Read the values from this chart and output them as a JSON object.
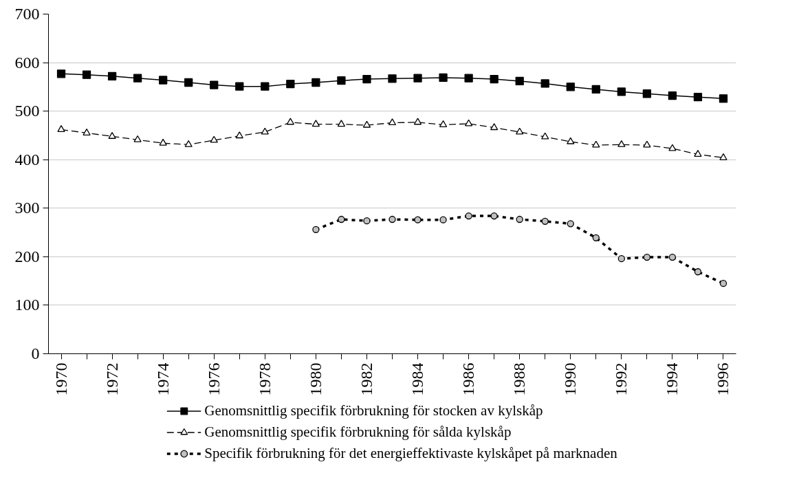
{
  "chart_data": {
    "type": "line",
    "x": [
      1970,
      1971,
      1972,
      1973,
      1974,
      1975,
      1976,
      1977,
      1978,
      1979,
      1980,
      1981,
      1982,
      1983,
      1984,
      1985,
      1986,
      1987,
      1988,
      1989,
      1990,
      1991,
      1992,
      1993,
      1994,
      1995,
      1996
    ],
    "xlim": [
      1969.5,
      1996.5
    ],
    "xticks": [
      1970,
      {
        "value": 1971,
        "label": null
      },
      1972,
      {
        "value": 1973,
        "label": null
      },
      1974,
      {
        "value": 1975,
        "label": null
      },
      1976,
      {
        "value": 1977,
        "label": null
      },
      1978,
      {
        "value": 1979,
        "label": null
      },
      1980,
      {
        "value": 1981,
        "label": null
      },
      1982,
      {
        "value": 1983,
        "label": null
      },
      1984,
      {
        "value": 1985,
        "label": null
      },
      1986,
      {
        "value": 1987,
        "label": null
      },
      1988,
      {
        "value": 1989,
        "label": null
      },
      1990,
      {
        "value": 1991,
        "label": null
      },
      1992,
      {
        "value": 1993,
        "label": null
      },
      1994,
      {
        "value": 1995,
        "label": null
      },
      1996
    ],
    "ylim": [
      0,
      700
    ],
    "yticks": [
      0,
      100,
      200,
      300,
      400,
      500,
      600,
      700
    ],
    "grid": "y",
    "legend": "bottom",
    "series": [
      {
        "name": "Genomsnittlig specifik förbrukning för stocken av kylskåp",
        "color": "#000000",
        "marker": "square",
        "line_style": "solid",
        "values": [
          577,
          575,
          572,
          568,
          564,
          559,
          554,
          551,
          551,
          556,
          559,
          563,
          566,
          567,
          568,
          569,
          568,
          566,
          562,
          557,
          550,
          545,
          540,
          536,
          532,
          529,
          526
        ]
      },
      {
        "name": "Genomsnittlig specifik förbrukning för sålda kylskåp",
        "color": "#000000",
        "marker": "triangle",
        "line_style": "dashed",
        "values": [
          462,
          455,
          448,
          441,
          434,
          431,
          440,
          449,
          457,
          477,
          473,
          473,
          471,
          476,
          477,
          472,
          474,
          466,
          457,
          447,
          437,
          430,
          431,
          430,
          423,
          411,
          404
        ]
      },
      {
        "name": "Specifik förbrukning för det energieffektivaste kylskåpet på marknaden",
        "color": "#000000",
        "marker": "circle",
        "line_style": "dotted",
        "values": [
          null,
          null,
          null,
          null,
          null,
          null,
          null,
          null,
          null,
          null,
          256,
          277,
          274,
          277,
          276,
          276,
          284,
          284,
          277,
          273,
          268,
          239,
          196,
          199,
          199,
          169,
          145
        ]
      }
    ]
  }
}
